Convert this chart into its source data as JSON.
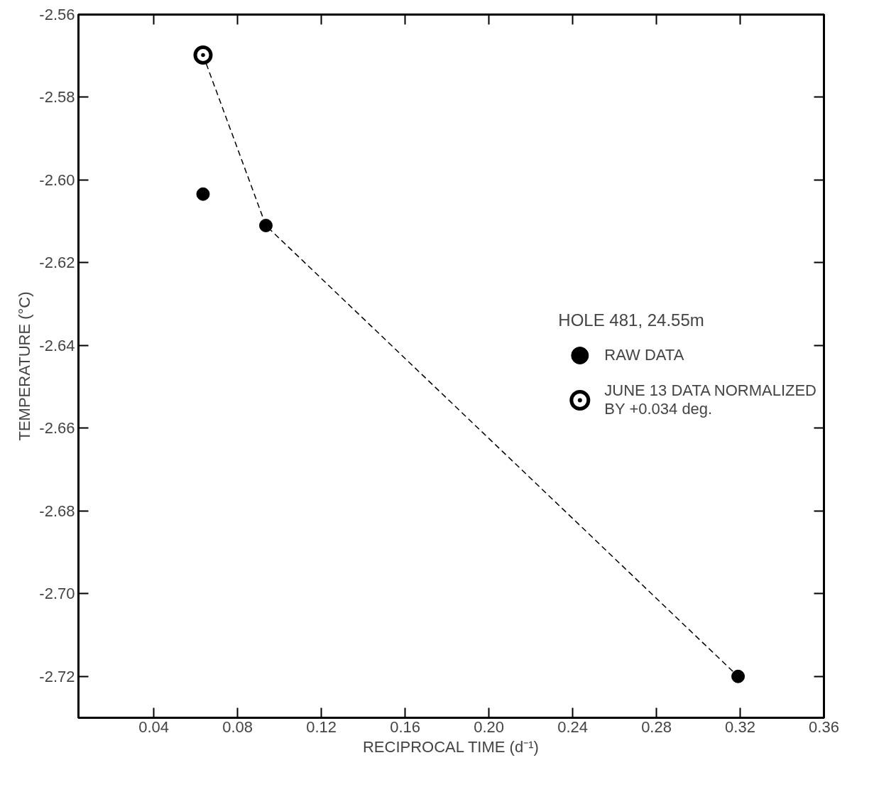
{
  "chart_data": {
    "type": "scatter",
    "xlabel": "RECIPROCAL TIME (d⁻¹)",
    "ylabel": "TEMPERATURE (°C)",
    "legend_title": "HOLE 481, 24.55m",
    "legend": "right",
    "xlim": [
      0.004,
      0.36
    ],
    "ylim": [
      -2.73,
      -2.56
    ],
    "xticks": [
      0.04,
      0.08,
      0.12,
      0.16,
      {
        "value": 0.2,
        "label": "0.20"
      },
      0.24,
      0.28,
      0.32,
      0.36
    ],
    "yticks": [
      -2.56,
      -2.58,
      {
        "value": -2.6,
        "label": "-2.60"
      },
      -2.62,
      -2.64,
      -2.66,
      -2.68,
      {
        "value": -2.7,
        "label": "-2.70"
      },
      -2.72
    ],
    "grid": false,
    "series": [
      {
        "type": "line",
        "color": "#000000",
        "line_style": "dashed",
        "marker": "none",
        "x": [
          0.0635,
          0.0935,
          0.319
        ],
        "values": [
          -2.5698,
          -2.611,
          -2.72
        ]
      },
      {
        "name": "RAW DATA",
        "color": "#000000",
        "marker": "circle",
        "x": [
          0.0635,
          0.0935,
          0.319
        ],
        "values": [
          -2.6034,
          -2.611,
          -2.72
        ]
      },
      {
        "name": "JUNE 13 DATA NORMALIZED\nBY +0.034 deg.",
        "color": "#000000",
        "marker": "circle_dot",
        "x": [
          0.0635
        ],
        "values": [
          -2.5698
        ]
      }
    ]
  }
}
